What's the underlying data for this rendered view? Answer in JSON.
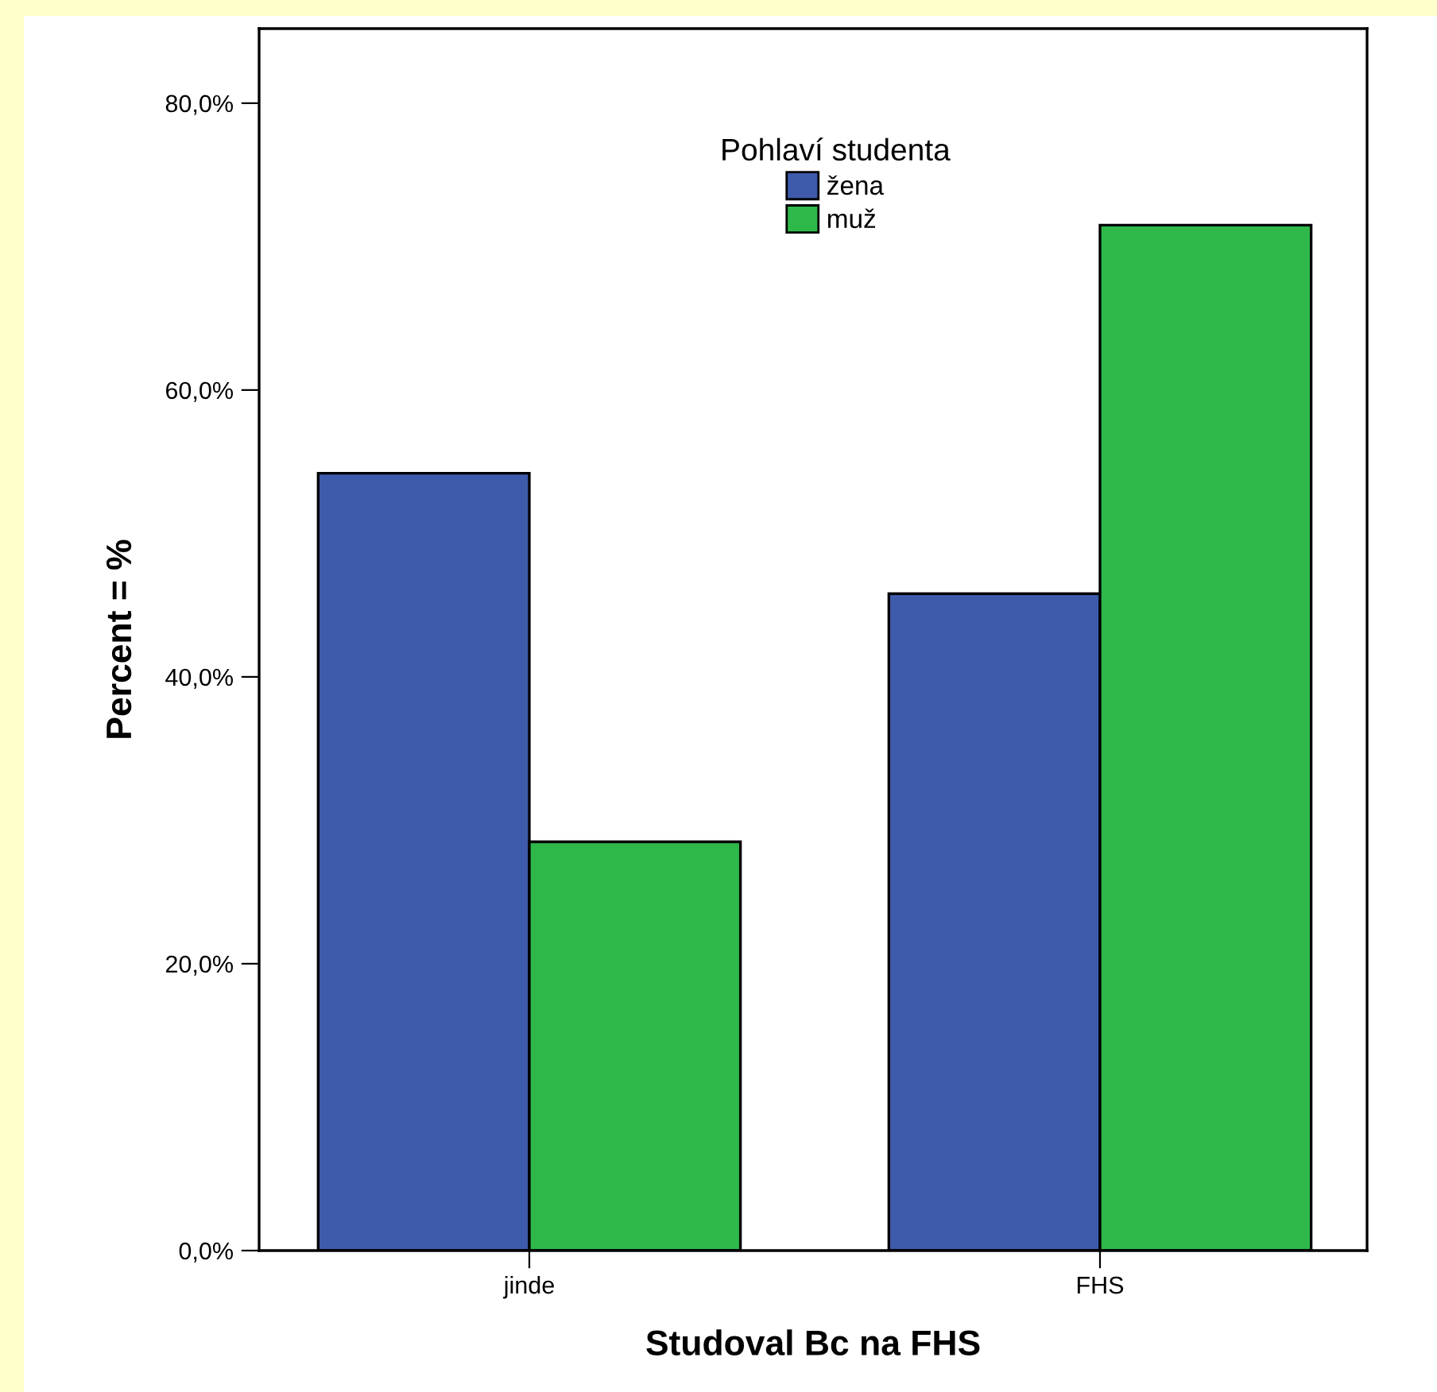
{
  "chart_data": {
    "type": "bar",
    "xlabel": "Studoval Bc na FHS",
    "ylabel": "Percent = %",
    "legend_title": "Pohlaví studenta",
    "legend": "top",
    "categories": [
      "jinde",
      "FHS"
    ],
    "series": [
      {
        "name": "žena",
        "color": "#3e5aab",
        "values": [
          54.2,
          45.8
        ]
      },
      {
        "name": "muž",
        "color": "#2eb84a",
        "values": [
          28.5,
          71.5
        ]
      }
    ],
    "ylim": [
      0,
      85.2
    ],
    "yticks": [
      {
        "value": 0,
        "label": "0,0%"
      },
      {
        "value": 20,
        "label": "20,0%"
      },
      {
        "value": 40,
        "label": "40,0%"
      },
      {
        "value": 60,
        "label": "60,0%"
      },
      {
        "value": 80,
        "label": "80,0%"
      }
    ],
    "grid": false
  }
}
